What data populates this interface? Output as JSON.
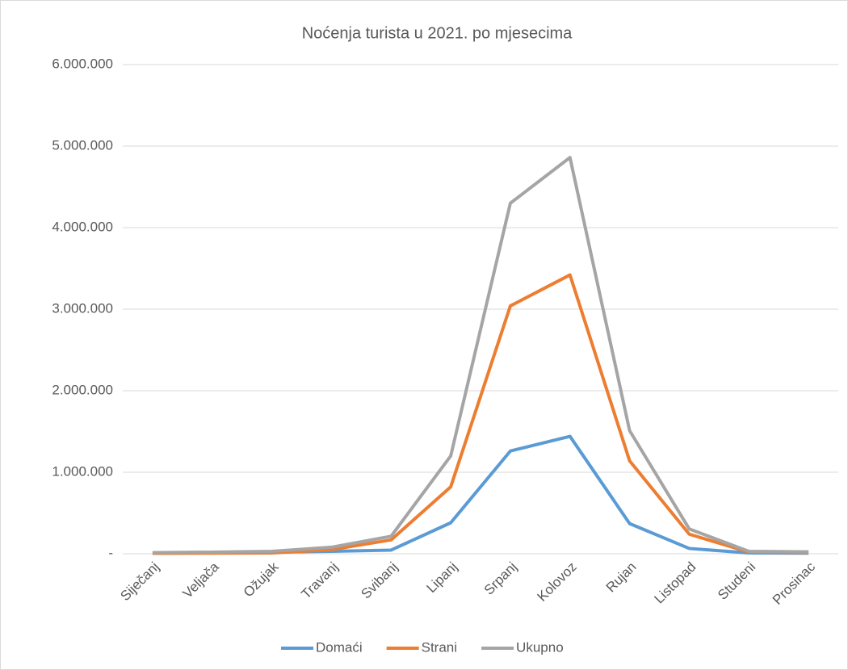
{
  "chart_data": {
    "type": "line",
    "title": "Noćenja turista u 2021. po mjesecima",
    "categories": [
      "Siječanj",
      "Veljača",
      "Ožujak",
      "Travanj",
      "Svibanj",
      "Lipanj",
      "Srpanj",
      "Kolovoz",
      "Rujan",
      "Listopad",
      "Studeni",
      "Prosinac"
    ],
    "series": [
      {
        "name": "Domaći",
        "color": "#5b9bd5",
        "values": [
          8000,
          12000,
          20000,
          30000,
          45000,
          380000,
          1260000,
          1440000,
          370000,
          65000,
          10000,
          8000
        ]
      },
      {
        "name": "Strani",
        "color": "#ed7d31",
        "values": [
          5000,
          8000,
          10000,
          50000,
          170000,
          820000,
          3040000,
          3420000,
          1140000,
          240000,
          20000,
          15000
        ]
      },
      {
        "name": "Ukupno",
        "color": "#a5a5a5",
        "values": [
          13000,
          20000,
          30000,
          80000,
          215000,
          1200000,
          4300000,
          4860000,
          1510000,
          305000,
          30000,
          23000
        ]
      }
    ],
    "ylim": [
      0,
      6000000
    ],
    "yticks": [
      {
        "value": 0,
        "label": "-"
      },
      {
        "value": 1000000,
        "label": "1.000.000"
      },
      {
        "value": 2000000,
        "label": "2.000.000"
      },
      {
        "value": 3000000,
        "label": "3.000.000"
      },
      {
        "value": 4000000,
        "label": "4.000.000"
      },
      {
        "value": 5000000,
        "label": "5.000.000"
      },
      {
        "value": 6000000,
        "label": "6.000.000"
      }
    ],
    "grid": true,
    "legend": "bottom"
  }
}
